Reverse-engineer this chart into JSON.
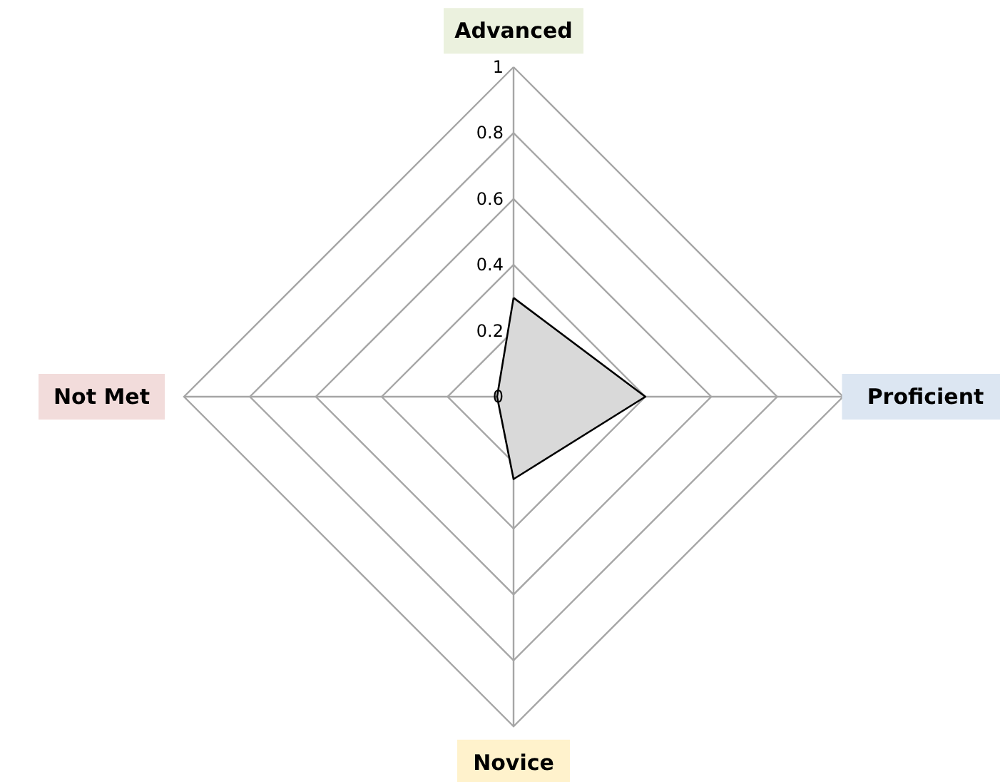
{
  "chart_data": {
    "type": "radar",
    "categories": [
      "Advanced",
      "Proficient",
      "Novice",
      "Not Met"
    ],
    "series": [
      {
        "color": "#d9d9d9",
        "values": [
          0.3,
          0.4,
          0.25,
          0.05
        ]
      }
    ],
    "ylim": [
      0,
      1
    ],
    "yticks": [
      0,
      0.2,
      0.4,
      0.6,
      0.8,
      1
    ],
    "grid": true
  }
}
